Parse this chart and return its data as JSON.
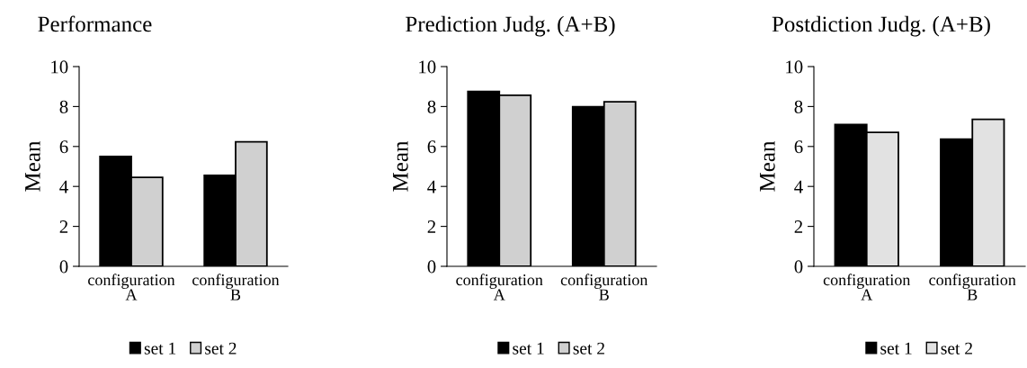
{
  "chart_data": [
    {
      "type": "bar",
      "title": "Performance",
      "ylabel": "Mean",
      "categories": [
        "configuration\nA",
        "configuration\nB"
      ],
      "ylim": [
        0,
        10
      ],
      "yticks": [
        0,
        2,
        4,
        6,
        8,
        10
      ],
      "legend": "bottom",
      "grid": false,
      "series": [
        {
          "name": "set 1",
          "color": "#000000",
          "values": [
            5.5,
            4.55
          ]
        },
        {
          "name": "set 2",
          "color": "#d0d0d0",
          "values": [
            4.45,
            6.23
          ]
        }
      ]
    },
    {
      "type": "bar",
      "title": "Prediction Judg. (A+B)",
      "ylabel": "Mean",
      "categories": [
        "configuration\nA",
        "configuration\nB"
      ],
      "ylim": [
        0,
        10
      ],
      "yticks": [
        0,
        2,
        4,
        6,
        8,
        10
      ],
      "legend": "bottom",
      "grid": false,
      "series": [
        {
          "name": "set 1",
          "color": "#000000",
          "values": [
            8.75,
            7.99
          ]
        },
        {
          "name": "set 2",
          "color": "#d0d0d0",
          "values": [
            8.56,
            8.24
          ]
        }
      ]
    },
    {
      "type": "bar",
      "title": "Postdiction Judg. (A+B)",
      "ylabel": "Mean",
      "categories": [
        "configuration\nA",
        "configuration\nB"
      ],
      "ylim": [
        0,
        10
      ],
      "yticks": [
        0,
        2,
        4,
        6,
        8,
        10
      ],
      "legend": "bottom",
      "grid": false,
      "series": [
        {
          "name": "set 1",
          "color": "#000000",
          "values": [
            7.1,
            6.37
          ]
        },
        {
          "name": "set 2",
          "color": "#e2e2e2",
          "values": [
            6.71,
            7.36
          ]
        }
      ]
    }
  ]
}
